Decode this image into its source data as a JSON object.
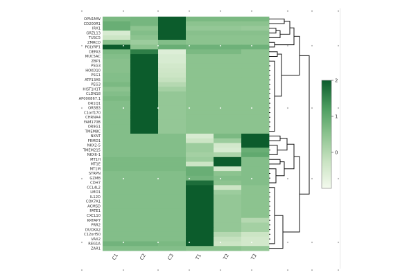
{
  "chart_data": {
    "type": "heatmap",
    "title": "",
    "xlabel": "",
    "ylabel": "",
    "colorscale": [
      "#f4faee",
      "#c9e3c2",
      "#8cc38f",
      "#4b9c5f",
      "#0c5c2c"
    ],
    "colorbar": {
      "min": -1,
      "max": 2,
      "ticks": [
        0,
        1,
        2
      ]
    },
    "columns": [
      "C1",
      "C2",
      "C3",
      "T1",
      "T2",
      "T3"
    ],
    "rows": [
      "OPN1MW",
      "CD200R1",
      "IRX1",
      "GRZL13",
      "TUSC5",
      "ZMRCD",
      "PGLYRP1",
      "DEFA3",
      "MUC5AC",
      "ZBP1",
      "PSG3",
      "HOXD10",
      "PSG1",
      "ATP13A5",
      "PEG3",
      "HIST1H1T",
      "CLDN18",
      "AP000867.1",
      "OR1Q1",
      "OR5B3",
      "C1orf170",
      "CHRNA4",
      "FAM170B",
      "OR9G1",
      "TMEM8C",
      "NXNT",
      "FRMD1",
      "NKX2-5",
      "TMEM215",
      "NKX6-1",
      "MT1H",
      "MT1E",
      "MT1M",
      "STRPN",
      "GZMB",
      "CDH7",
      "CCL4L2",
      "LMO1",
      "IL12D",
      "COX7A1",
      "ACMSD",
      "PATE1",
      "CXCL10",
      "KRTAP7",
      "PRR2",
      "DUOXA2",
      "C12orf50",
      "VAX2",
      "REG1A",
      "ZAR1"
    ],
    "values": [
      [
        0.7,
        0.75,
        2.1,
        0.7,
        0.7,
        0.7
      ],
      [
        0.9,
        0.75,
        2.1,
        0.5,
        0.5,
        0.5
      ],
      [
        0.9,
        0.5,
        2.1,
        0.4,
        0.4,
        0.35
      ],
      [
        -0.5,
        0.6,
        2.1,
        0.55,
        0.55,
        0.55
      ],
      [
        -0.3,
        0.5,
        2.1,
        0.5,
        0.5,
        0.5
      ],
      [
        0.5,
        0.3,
        0.6,
        0.5,
        0.5,
        0.5
      ],
      [
        2.2,
        0.5,
        0.9,
        0.85,
        0.85,
        0.85
      ],
      [
        0.7,
        1.6,
        -0.6,
        0.7,
        0.7,
        0.5
      ],
      [
        0.6,
        2.2,
        -0.5,
        0.5,
        0.5,
        0.5
      ],
      [
        0.55,
        2.2,
        -0.5,
        0.5,
        0.5,
        0.5
      ],
      [
        0.55,
        2.2,
        -0.4,
        0.5,
        0.5,
        0.5
      ],
      [
        0.55,
        2.2,
        -0.35,
        0.5,
        0.5,
        0.5
      ],
      [
        0.6,
        2.2,
        -0.3,
        0.5,
        0.5,
        0.5
      ],
      [
        0.6,
        2.2,
        -0.2,
        0.5,
        0.5,
        0.5
      ],
      [
        0.7,
        2.2,
        0.0,
        0.5,
        0.5,
        0.5
      ],
      [
        0.5,
        2.2,
        0.2,
        0.5,
        0.5,
        0.5
      ],
      [
        0.6,
        2.2,
        0.4,
        0.5,
        0.5,
        0.5
      ],
      [
        0.7,
        2.2,
        0.4,
        0.5,
        0.5,
        0.5
      ],
      [
        0.6,
        2.2,
        0.4,
        0.5,
        0.5,
        0.5
      ],
      [
        0.6,
        2.2,
        0.4,
        0.5,
        0.5,
        0.5
      ],
      [
        0.6,
        2.2,
        0.4,
        0.5,
        0.5,
        0.5
      ],
      [
        0.6,
        2.2,
        0.4,
        0.5,
        0.5,
        0.5
      ],
      [
        0.6,
        2.2,
        0.4,
        0.5,
        0.5,
        0.5
      ],
      [
        0.6,
        2.2,
        0.4,
        0.5,
        0.5,
        0.5
      ],
      [
        0.6,
        2.2,
        0.4,
        0.5,
        0.5,
        0.5
      ],
      [
        0.6,
        0.6,
        0.6,
        -0.5,
        0.7,
        2.2
      ],
      [
        0.6,
        0.6,
        0.6,
        -0.3,
        0.3,
        2.2
      ],
      [
        0.6,
        0.6,
        0.6,
        0.3,
        -0.4,
        2.2
      ],
      [
        0.6,
        0.6,
        0.6,
        0.3,
        -0.5,
        0.9
      ],
      [
        0.6,
        0.6,
        0.6,
        0.2,
        0.1,
        1.0
      ],
      [
        0.7,
        0.7,
        0.7,
        0.3,
        2.3,
        0.6
      ],
      [
        0.7,
        0.7,
        0.7,
        -0.3,
        2.3,
        0.6
      ],
      [
        0.7,
        0.7,
        0.7,
        0.9,
        -0.4,
        0.6
      ],
      [
        0.6,
        0.6,
        0.6,
        0.9,
        0.5,
        0.6
      ],
      [
        0.6,
        0.6,
        0.6,
        0.8,
        0.6,
        0.6
      ],
      [
        0.6,
        0.6,
        0.6,
        1.8,
        0.5,
        0.6
      ],
      [
        0.6,
        0.6,
        0.6,
        2.2,
        -0.3,
        0.5
      ],
      [
        0.6,
        0.6,
        0.6,
        2.2,
        0.3,
        0.5
      ],
      [
        0.6,
        0.6,
        0.6,
        2.2,
        0.4,
        0.5
      ],
      [
        0.6,
        0.6,
        0.6,
        2.2,
        0.4,
        0.5
      ],
      [
        0.6,
        0.6,
        0.6,
        2.2,
        0.4,
        0.5
      ],
      [
        0.6,
        0.6,
        0.6,
        2.2,
        0.4,
        0.5
      ],
      [
        0.6,
        0.6,
        0.6,
        2.2,
        0.4,
        0.5
      ],
      [
        0.6,
        0.6,
        0.6,
        2.2,
        0.4,
        0.0
      ],
      [
        0.6,
        0.6,
        0.6,
        2.2,
        0.4,
        0.2
      ],
      [
        0.6,
        0.6,
        0.6,
        2.2,
        0.4,
        0.2
      ],
      [
        0.6,
        0.6,
        0.6,
        2.2,
        0.0,
        -0.3
      ],
      [
        0.6,
        0.6,
        0.6,
        2.2,
        -0.2,
        -0.4
      ],
      [
        0.8,
        0.8,
        0.7,
        2.0,
        -0.3,
        -0.4
      ],
      [
        0.6,
        0.6,
        0.6,
        0.5,
        0.5,
        0.4
      ]
    ]
  }
}
